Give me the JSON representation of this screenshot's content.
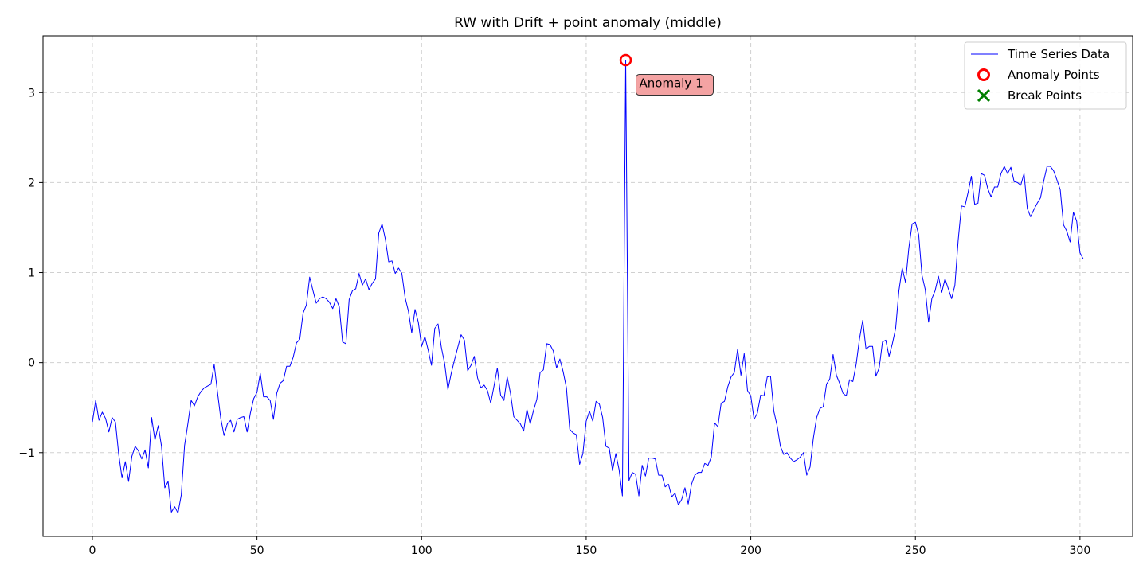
{
  "chart_data": {
    "type": "line",
    "title": "RW with Drift + point anomaly (middle)",
    "xlabel": "",
    "ylabel": "",
    "xlim": [
      -15,
      316
    ],
    "ylim": [
      -1.93,
      3.63
    ],
    "x_ticks": [
      0,
      50,
      100,
      150,
      200,
      250,
      300
    ],
    "y_ticks": [
      -1,
      0,
      1,
      2,
      3
    ],
    "y_tick_labels": [
      "−1",
      "0",
      "1",
      "2",
      "3"
    ],
    "grid": true,
    "legend_position": "top-right",
    "legend": [
      {
        "label": "Time Series Data",
        "marker": "line",
        "color": "#0000ff"
      },
      {
        "label": "Anomaly Points",
        "marker": "circle",
        "color": "#ff0000"
      },
      {
        "label": "Break Points",
        "marker": "x",
        "color": "#008000"
      }
    ],
    "annotations": [
      {
        "text": "Anomaly 1",
        "x": 162,
        "y": 3.36,
        "bg_color": "#f4a3a3"
      }
    ],
    "anomaly_points": [
      {
        "x": 162,
        "y": 3.36
      }
    ],
    "break_points": [],
    "series": [
      {
        "name": "Time Series Data",
        "color": "#0000ff",
        "x_start": 0,
        "values": [
          -0.66,
          -0.42,
          -0.64,
          -0.55,
          -0.62,
          -0.77,
          -0.61,
          -0.66,
          -1.02,
          -1.28,
          -1.1,
          -1.32,
          -1.04,
          -0.93,
          -0.98,
          -1.07,
          -0.97,
          -1.17,
          -0.61,
          -0.86,
          -0.7,
          -0.93,
          -1.39,
          -1.32,
          -1.66,
          -1.6,
          -1.67,
          -1.47,
          -0.92,
          -0.68,
          -0.42,
          -0.48,
          -0.38,
          -0.32,
          -0.28,
          -0.26,
          -0.24,
          -0.02,
          -0.33,
          -0.62,
          -0.81,
          -0.68,
          -0.64,
          -0.77,
          -0.63,
          -0.61,
          -0.6,
          -0.77,
          -0.56,
          -0.4,
          -0.33,
          -0.12,
          -0.38,
          -0.38,
          -0.42,
          -0.63,
          -0.34,
          -0.23,
          -0.2,
          -0.04,
          -0.04,
          0.06,
          0.22,
          0.26,
          0.55,
          0.64,
          0.95,
          0.8,
          0.66,
          0.71,
          0.73,
          0.71,
          0.67,
          0.6,
          0.71,
          0.62,
          0.23,
          0.21,
          0.7,
          0.8,
          0.82,
          0.99,
          0.86,
          0.93,
          0.81,
          0.88,
          0.93,
          1.44,
          1.54,
          1.37,
          1.12,
          1.13,
          0.99,
          1.05,
          0.99,
          0.72,
          0.57,
          0.33,
          0.59,
          0.45,
          0.18,
          0.29,
          0.14,
          -0.03,
          0.38,
          0.43,
          0.17,
          -0.01,
          -0.3,
          -0.12,
          0.03,
          0.17,
          0.31,
          0.25,
          -0.09,
          -0.03,
          0.07,
          -0.17,
          -0.28,
          -0.25,
          -0.31,
          -0.45,
          -0.26,
          -0.06,
          -0.36,
          -0.42,
          -0.16,
          -0.34,
          -0.6,
          -0.64,
          -0.68,
          -0.76,
          -0.52,
          -0.68,
          -0.53,
          -0.41,
          -0.11,
          -0.08,
          0.21,
          0.2,
          0.13,
          -0.06,
          0.04,
          -0.1,
          -0.28,
          -0.74,
          -0.78,
          -0.8,
          -1.13,
          -1.01,
          -0.65,
          -0.54,
          -0.65,
          -0.43,
          -0.46,
          -0.61,
          -0.93,
          -0.95,
          -1.2,
          -1.01,
          -1.19,
          -1.48,
          3.36,
          -1.31,
          -1.22,
          -1.24,
          -1.48,
          -1.14,
          -1.26,
          -1.06,
          -1.06,
          -1.07,
          -1.25,
          -1.25,
          -1.38,
          -1.35,
          -1.49,
          -1.45,
          -1.58,
          -1.52,
          -1.39,
          -1.57,
          -1.35,
          -1.25,
          -1.22,
          -1.22,
          -1.12,
          -1.14,
          -1.05,
          -0.67,
          -0.71,
          -0.45,
          -0.43,
          -0.27,
          -0.16,
          -0.11,
          0.15,
          -0.14,
          0.1,
          -0.31,
          -0.37,
          -0.63,
          -0.56,
          -0.36,
          -0.37,
          -0.16,
          -0.15,
          -0.54,
          -0.7,
          -0.93,
          -1.02,
          -1.0,
          -1.06,
          -1.1,
          -1.08,
          -1.05,
          -1.0,
          -1.25,
          -1.16,
          -0.84,
          -0.61,
          -0.51,
          -0.49,
          -0.24,
          -0.18,
          0.09,
          -0.14,
          -0.23,
          -0.34,
          -0.37,
          -0.19,
          -0.21,
          -0.02,
          0.26,
          0.47,
          0.15,
          0.18,
          0.18,
          -0.15,
          -0.06,
          0.23,
          0.25,
          0.07,
          0.21,
          0.38,
          0.8,
          1.05,
          0.89,
          1.27,
          1.54,
          1.56,
          1.42,
          0.97,
          0.81,
          0.45,
          0.71,
          0.8,
          0.96,
          0.78,
          0.93,
          0.82,
          0.71,
          0.86,
          1.36,
          1.74,
          1.73,
          1.89,
          2.07,
          1.76,
          1.77,
          2.1,
          2.08,
          1.93,
          1.84,
          1.95,
          1.95,
          2.1,
          2.18,
          2.1,
          2.17,
          2.01,
          2.0,
          1.97,
          2.1,
          1.71,
          1.62,
          1.7,
          1.77,
          1.83,
          2.02,
          2.18,
          2.18,
          2.13,
          2.03,
          1.92,
          1.53,
          1.46,
          1.34,
          1.67,
          1.57,
          1.22,
          1.15
        ]
      }
    ]
  }
}
